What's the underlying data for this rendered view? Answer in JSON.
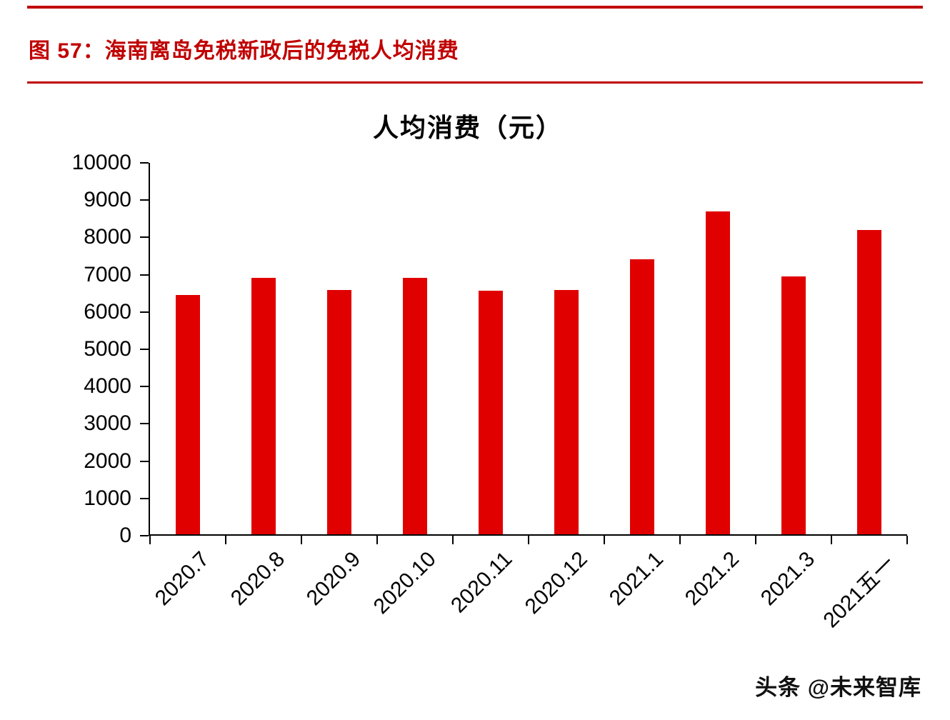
{
  "header": {
    "figure_title": "图 57：海南离岛免税新政后的免税人均消费"
  },
  "chart_data": {
    "type": "bar",
    "title": "人均消费（元）",
    "categories": [
      "2020.7",
      "2020.8",
      "2020.9",
      "2020.10",
      "2020.11",
      "2020.12",
      "2021.1",
      "2021.2",
      "2021.3",
      "2021五一"
    ],
    "values": [
      6450,
      6900,
      6580,
      6900,
      6550,
      6580,
      7400,
      8700,
      6950,
      8200
    ],
    "xlabel": "",
    "ylabel": "",
    "ylim": [
      0,
      10000
    ],
    "yticks": [
      0,
      1000,
      2000,
      3000,
      4000,
      5000,
      6000,
      7000,
      8000,
      9000,
      10000
    ],
    "grid": false,
    "legend_position": "none",
    "bar_color": "#e00000"
  },
  "footer": {
    "watermark": "头条 @未来智库"
  },
  "colors": {
    "accent_red": "#c00000",
    "bar_red": "#e00000",
    "axis_black": "#000000"
  }
}
